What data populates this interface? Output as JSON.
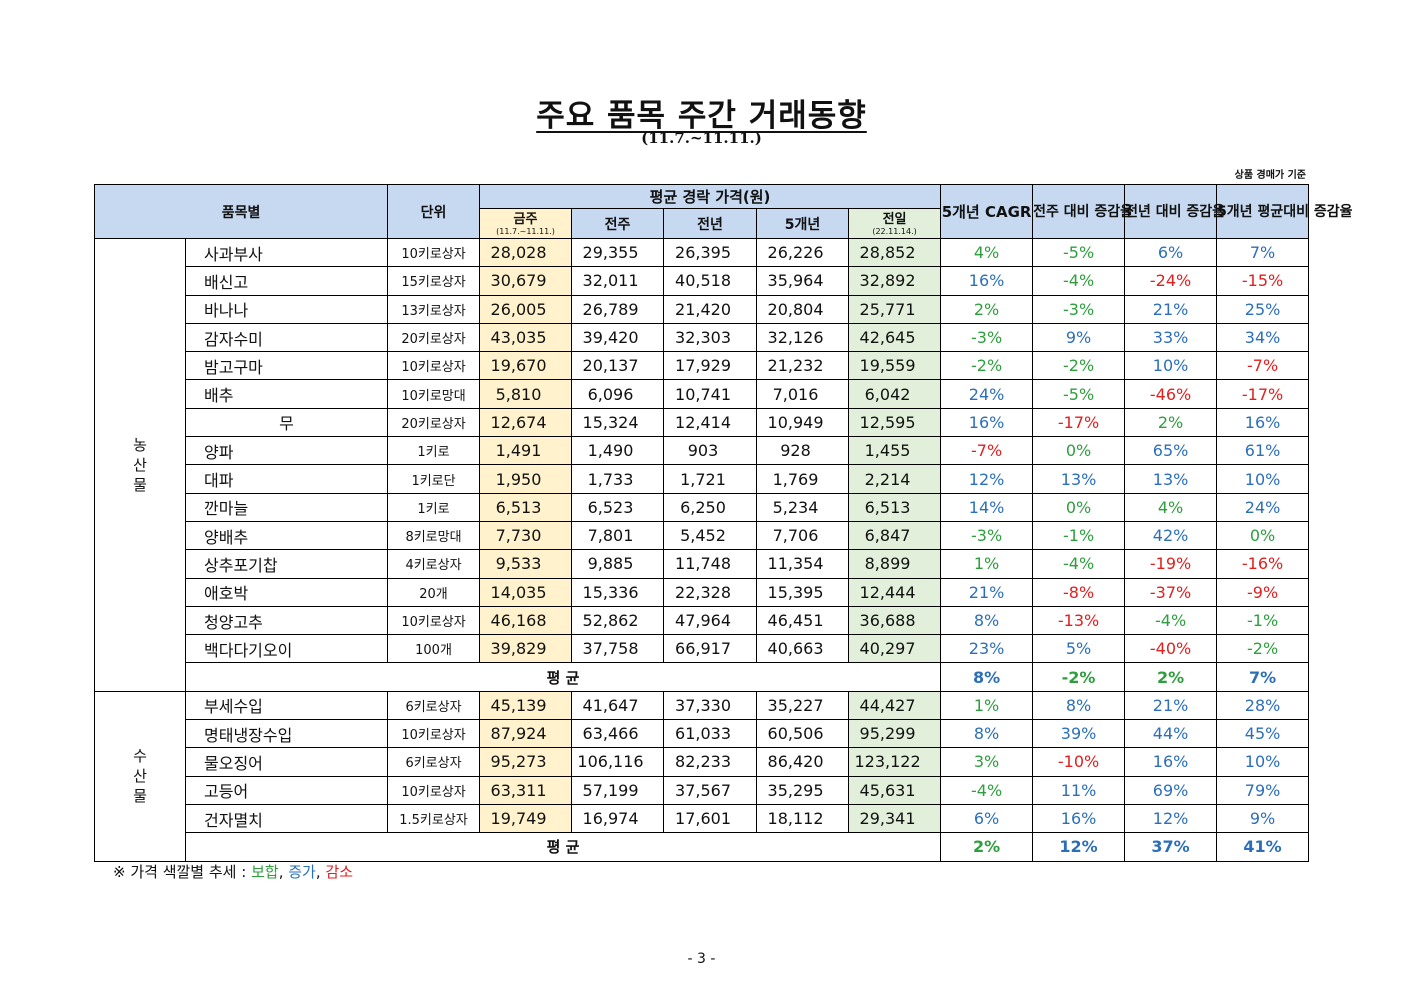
{
  "title": "주요 품목 주간 거래동향",
  "subtitle": "(11.7.~11.11.)",
  "basis_note": "상품 경매가 기준",
  "header": {
    "item_col": "품목별",
    "unit_col": "단위",
    "avg_price_group": "평균 경락 가격(원)",
    "this_week": "금주",
    "this_week_sub": "(11.7.~11.11.)",
    "last_week": "전주",
    "last_year": "전년",
    "five_year": "5개년",
    "today": "전일",
    "today_sub": "(22.11.14.)",
    "cagr": "5개년 CAGR",
    "wow": "전주 대비 증감율",
    "yoy": "전년 대비 증감율",
    "five_avg": "5개년 평균대비 증감율"
  },
  "colors": {
    "flat": "#2e9e3e",
    "up": "#2c6fb8",
    "down": "#e02020"
  },
  "groups": [
    {
      "category": "농산물",
      "rows": [
        {
          "item": "사과부사",
          "unit": "10키로상자",
          "this_week": "28,028",
          "last_week": "29,355",
          "last_year": "26,395",
          "five_year": "26,226",
          "today": "28,852",
          "cagr": "4%",
          "wow": "-5%",
          "yoy": "6%",
          "five_avg": "7%",
          "c": [
            "flat",
            "flat",
            "up",
            "up"
          ]
        },
        {
          "item": "배신고",
          "unit": "15키로상자",
          "this_week": "30,679",
          "last_week": "32,011",
          "last_year": "40,518",
          "five_year": "35,964",
          "today": "32,892",
          "cagr": "16%",
          "wow": "-4%",
          "yoy": "-24%",
          "five_avg": "-15%",
          "c": [
            "up",
            "flat",
            "down",
            "down"
          ]
        },
        {
          "item": "바나나",
          "unit": "13키로상자",
          "this_week": "26,005",
          "last_week": "26,789",
          "last_year": "21,420",
          "five_year": "20,804",
          "today": "25,771",
          "cagr": "2%",
          "wow": "-3%",
          "yoy": "21%",
          "five_avg": "25%",
          "c": [
            "flat",
            "flat",
            "up",
            "up"
          ]
        },
        {
          "item": "감자수미",
          "unit": "20키로상자",
          "this_week": "43,035",
          "last_week": "39,420",
          "last_year": "32,303",
          "five_year": "32,126",
          "today": "42,645",
          "cagr": "-3%",
          "wow": "9%",
          "yoy": "33%",
          "five_avg": "34%",
          "c": [
            "flat",
            "up",
            "up",
            "up"
          ]
        },
        {
          "item": "밤고구마",
          "unit": "10키로상자",
          "this_week": "19,670",
          "last_week": "20,137",
          "last_year": "17,929",
          "five_year": "21,232",
          "today": "19,559",
          "cagr": "-2%",
          "wow": "-2%",
          "yoy": "10%",
          "five_avg": "-7%",
          "c": [
            "flat",
            "flat",
            "up",
            "down"
          ]
        },
        {
          "item": "배추",
          "unit": "10키로망대",
          "this_week": "5,810",
          "last_week": "6,096",
          "last_year": "10,741",
          "five_year": "7,016",
          "today": "6,042",
          "cagr": "24%",
          "wow": "-5%",
          "yoy": "-46%",
          "five_avg": "-17%",
          "c": [
            "up",
            "flat",
            "down",
            "down"
          ]
        },
        {
          "item": "무",
          "unit": "20키로상자",
          "this_week": "12,674",
          "last_week": "15,324",
          "last_year": "12,414",
          "five_year": "10,949",
          "today": "12,595",
          "cagr": "16%",
          "wow": "-17%",
          "yoy": "2%",
          "five_avg": "16%",
          "c": [
            "up",
            "down",
            "flat",
            "up"
          ],
          "center": true
        },
        {
          "item": "양파",
          "unit": "1키로",
          "this_week": "1,491",
          "last_week": "1,490",
          "last_year": "903",
          "five_year": "928",
          "today": "1,455",
          "cagr": "-7%",
          "wow": "0%",
          "yoy": "65%",
          "five_avg": "61%",
          "c": [
            "down",
            "flat",
            "up",
            "up"
          ]
        },
        {
          "item": "대파",
          "unit": "1키로단",
          "this_week": "1,950",
          "last_week": "1,733",
          "last_year": "1,721",
          "five_year": "1,769",
          "today": "2,214",
          "cagr": "12%",
          "wow": "13%",
          "yoy": "13%",
          "five_avg": "10%",
          "c": [
            "up",
            "up",
            "up",
            "up"
          ]
        },
        {
          "item": "깐마늘",
          "unit": "1키로",
          "this_week": "6,513",
          "last_week": "6,523",
          "last_year": "6,250",
          "five_year": "5,234",
          "today": "6,513",
          "cagr": "14%",
          "wow": "0%",
          "yoy": "4%",
          "five_avg": "24%",
          "c": [
            "up",
            "flat",
            "flat",
            "up"
          ]
        },
        {
          "item": "양배추",
          "unit": "8키로망대",
          "this_week": "7,730",
          "last_week": "7,801",
          "last_year": "5,452",
          "five_year": "7,706",
          "today": "6,847",
          "cagr": "-3%",
          "wow": "-1%",
          "yoy": "42%",
          "five_avg": "0%",
          "c": [
            "flat",
            "flat",
            "up",
            "flat"
          ]
        },
        {
          "item": "상추포기찹",
          "unit": "4키로상자",
          "this_week": "9,533",
          "last_week": "9,885",
          "last_year": "11,748",
          "five_year": "11,354",
          "today": "8,899",
          "cagr": "1%",
          "wow": "-4%",
          "yoy": "-19%",
          "five_avg": "-16%",
          "c": [
            "flat",
            "flat",
            "down",
            "down"
          ]
        },
        {
          "item": "애호박",
          "unit": "20개",
          "this_week": "14,035",
          "last_week": "15,336",
          "last_year": "22,328",
          "five_year": "15,395",
          "today": "12,444",
          "cagr": "21%",
          "wow": "-8%",
          "yoy": "-37%",
          "five_avg": "-9%",
          "c": [
            "up",
            "down",
            "down",
            "down"
          ]
        },
        {
          "item": "청양고추",
          "unit": "10키로상자",
          "this_week": "46,168",
          "last_week": "52,862",
          "last_year": "47,964",
          "five_year": "46,451",
          "today": "36,688",
          "cagr": "8%",
          "wow": "-13%",
          "yoy": "-4%",
          "five_avg": "-1%",
          "c": [
            "up",
            "down",
            "flat",
            "flat"
          ]
        },
        {
          "item": "백다다기오이",
          "unit": "100개",
          "this_week": "39,829",
          "last_week": "37,758",
          "last_year": "66,917",
          "five_year": "40,663",
          "today": "40,297",
          "cagr": "23%",
          "wow": "5%",
          "yoy": "-40%",
          "five_avg": "-2%",
          "c": [
            "up",
            "up",
            "down",
            "flat"
          ]
        }
      ],
      "avg": {
        "label": "평 균",
        "cagr": "8%",
        "wow": "-2%",
        "yoy": "2%",
        "five_avg": "7%",
        "c": [
          "up",
          "flat",
          "flat",
          "up"
        ]
      }
    },
    {
      "category": "수산물",
      "rows": [
        {
          "item": "부세수입",
          "unit": "6키로상자",
          "this_week": "45,139",
          "last_week": "41,647",
          "last_year": "37,330",
          "five_year": "35,227",
          "today": "44,427",
          "cagr": "1%",
          "wow": "8%",
          "yoy": "21%",
          "five_avg": "28%",
          "c": [
            "flat",
            "up",
            "up",
            "up"
          ]
        },
        {
          "item": "명태냉장수입",
          "unit": "10키로상자",
          "this_week": "87,924",
          "last_week": "63,466",
          "last_year": "61,033",
          "five_year": "60,506",
          "today": "95,299",
          "cagr": "8%",
          "wow": "39%",
          "yoy": "44%",
          "five_avg": "45%",
          "c": [
            "up",
            "up",
            "up",
            "up"
          ]
        },
        {
          "item": "물오징어",
          "unit": "6키로상자",
          "this_week": "95,273",
          "last_week": "106,116",
          "last_year": "82,233",
          "five_year": "86,420",
          "today": "123,122",
          "cagr": "3%",
          "wow": "-10%",
          "yoy": "16%",
          "five_avg": "10%",
          "c": [
            "flat",
            "down",
            "up",
            "up"
          ]
        },
        {
          "item": "고등어",
          "unit": "10키로상자",
          "this_week": "63,311",
          "last_week": "57,199",
          "last_year": "37,567",
          "five_year": "35,295",
          "today": "45,631",
          "cagr": "-4%",
          "wow": "11%",
          "yoy": "69%",
          "five_avg": "79%",
          "c": [
            "flat",
            "up",
            "up",
            "up"
          ]
        },
        {
          "item": "건자멸치",
          "unit": "1.5키로상자",
          "this_week": "19,749",
          "last_week": "16,974",
          "last_year": "17,601",
          "five_year": "18,112",
          "today": "29,341",
          "cagr": "6%",
          "wow": "16%",
          "yoy": "12%",
          "five_avg": "9%",
          "c": [
            "up",
            "up",
            "up",
            "up"
          ]
        }
      ],
      "avg": {
        "label": "평 균",
        "cagr": "2%",
        "wow": "12%",
        "yoy": "37%",
        "five_avg": "41%",
        "c": [
          "flat",
          "up",
          "up",
          "up"
        ]
      }
    }
  ],
  "legend": {
    "prefix": "※ 가격 색깔별 추세 : ",
    "flat": "보합",
    "sep1": ", ",
    "up": "증가",
    "sep2": ", ",
    "down": "감소"
  },
  "page_number": "- 3 -"
}
